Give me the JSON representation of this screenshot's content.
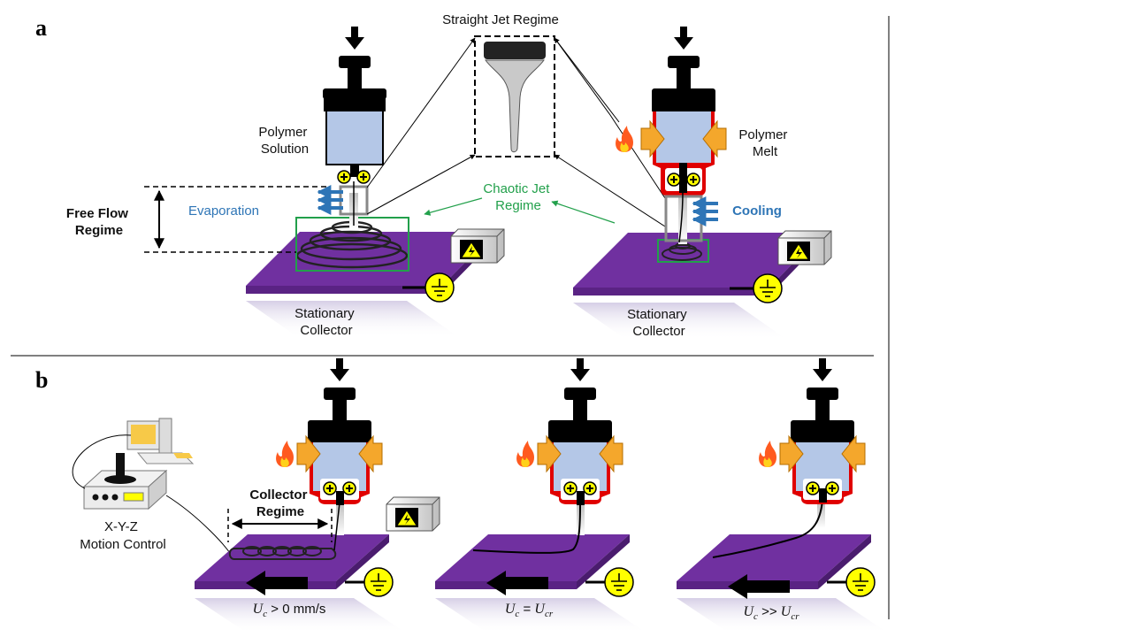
{
  "panels": {
    "a": "a",
    "b": "b"
  },
  "panel_a": {
    "straight_jet": "Straight Jet Regime",
    "polymer_solution": [
      "Polymer",
      "Solution"
    ],
    "polymer_melt": [
      "Polymer",
      "Melt"
    ],
    "free_flow": [
      "Free Flow",
      "Regime"
    ],
    "evaporation": "Evaporation",
    "chaotic_jet": [
      "Chaotic Jet",
      "Regime"
    ],
    "cooling": "Cooling",
    "collector_left": [
      "Stationary",
      "Collector"
    ],
    "collector_right": [
      "Stationary",
      "Collector"
    ]
  },
  "panel_b": {
    "collector_regime": [
      "Collector",
      "Regime"
    ],
    "motion_control": [
      "X-Y-Z",
      "Motion Control"
    ],
    "speed_1": {
      "var": "U",
      "sub": "c",
      "rel": " > 0 mm/s",
      "rhs_var": "",
      "rhs_sub": ""
    },
    "speed_2": {
      "var": "U",
      "sub": "c",
      "rel": " = ",
      "rhs_var": "U",
      "rhs_sub": "cr"
    },
    "speed_3": {
      "var": "U",
      "sub": "c",
      "rel": " >> ",
      "rhs_var": "U",
      "rhs_sub": "cr"
    }
  },
  "symbols": {
    "plus": "+",
    "ground_icon": "ground-icon",
    "hv_icon": "high-voltage-icon",
    "flame_icon": "flame-icon"
  },
  "colors": {
    "collector": "#7030a0",
    "barrel": "#b4c7e7",
    "heater": "#e00000",
    "arrow": "#f4a72c",
    "blue": "#2e75b6",
    "green": "#22a04b",
    "ground": "#ffff00"
  }
}
